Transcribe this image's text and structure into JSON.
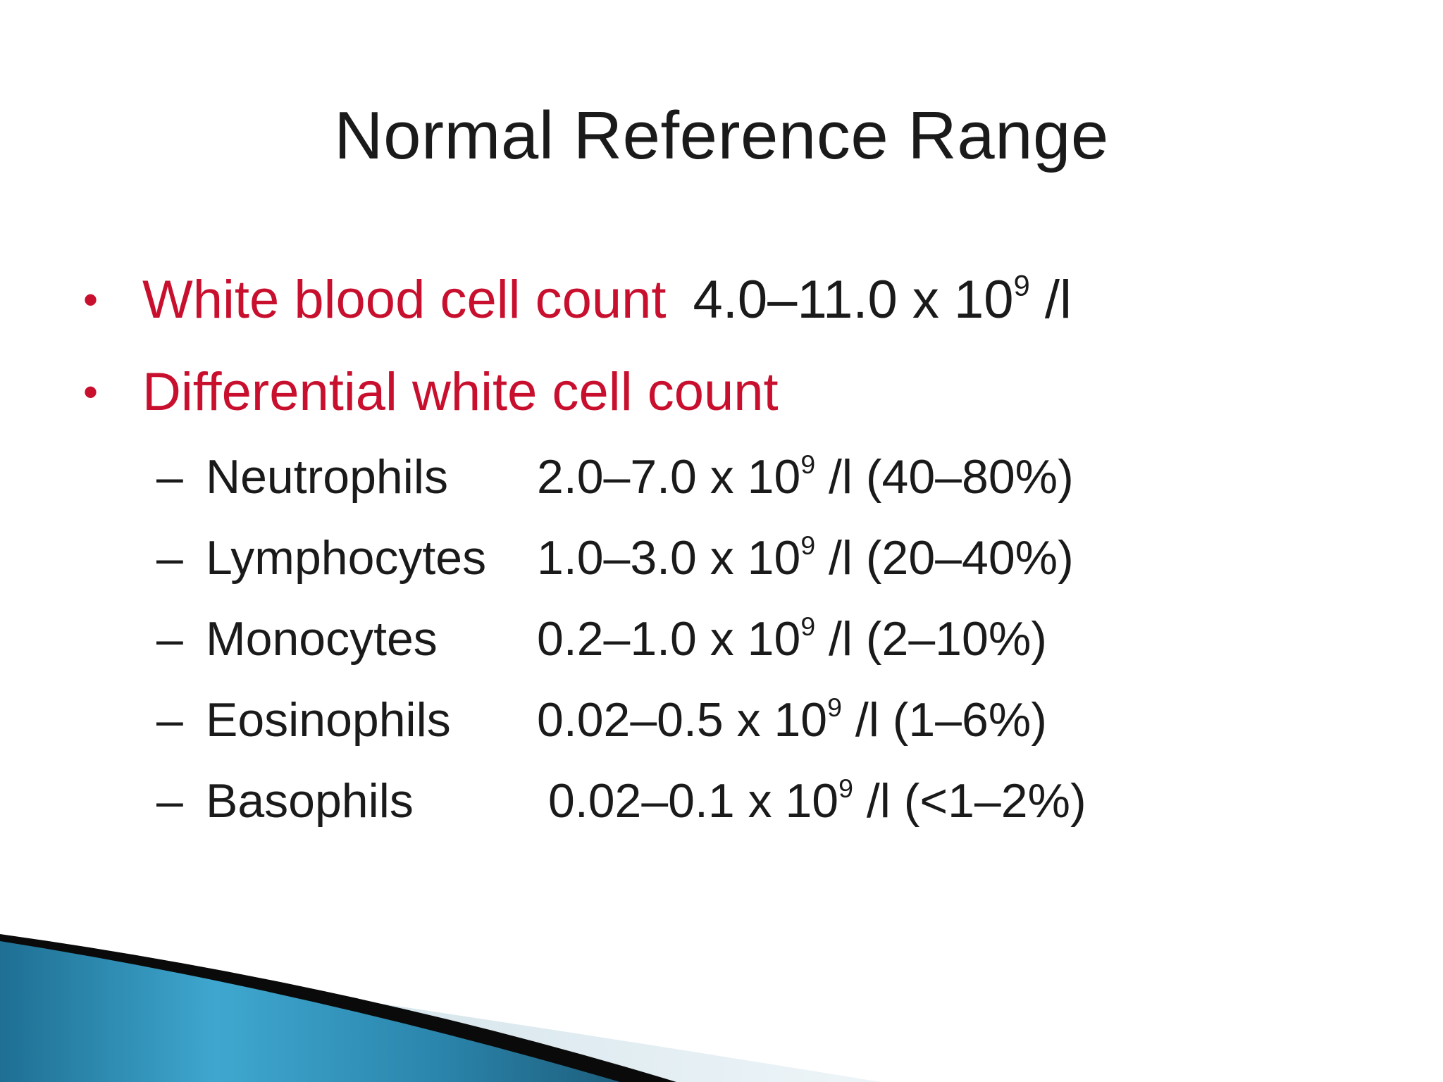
{
  "slide": {
    "title": "Normal Reference Range",
    "bullets": [
      {
        "marker": "•",
        "label": "White blood cell count",
        "value": "4.0–11.0 x 10",
        "exponent": "9",
        "unit": " /l"
      },
      {
        "marker": "•",
        "label": "Differential white cell count"
      }
    ],
    "differential": [
      {
        "dash": "–",
        "name": "Neutrophils",
        "range": "2.0–7.0 x 10",
        "exponent": "9",
        "rest": " /l (40–80%)"
      },
      {
        "dash": "–",
        "name": "Lymphocytes",
        "range": "1.0–3.0 x 10",
        "exponent": "9",
        "rest": " /l (20–40%)"
      },
      {
        "dash": "–",
        "name": "Monocytes",
        "range": "0.2–1.0 x 10",
        "exponent": "9",
        "rest": " /l (2–10%)"
      },
      {
        "dash": "–",
        "name": "Eosinophils",
        "range": "0.02–0.5 x 10",
        "exponent": "9",
        "rest": " /l (1–6%)"
      },
      {
        "dash": "–",
        "name": "Basophils",
        "range": "0.02–0.1 x 10",
        "exponent": "9",
        "rest": " /l (<1–2%)"
      }
    ]
  },
  "colors": {
    "label_red": "#c8102e",
    "text": "#1a1a1a",
    "swoosh_blue": "#2f8fb5",
    "swoosh_dark": "#0a0a0a",
    "swoosh_light": "#d5e6ee"
  }
}
